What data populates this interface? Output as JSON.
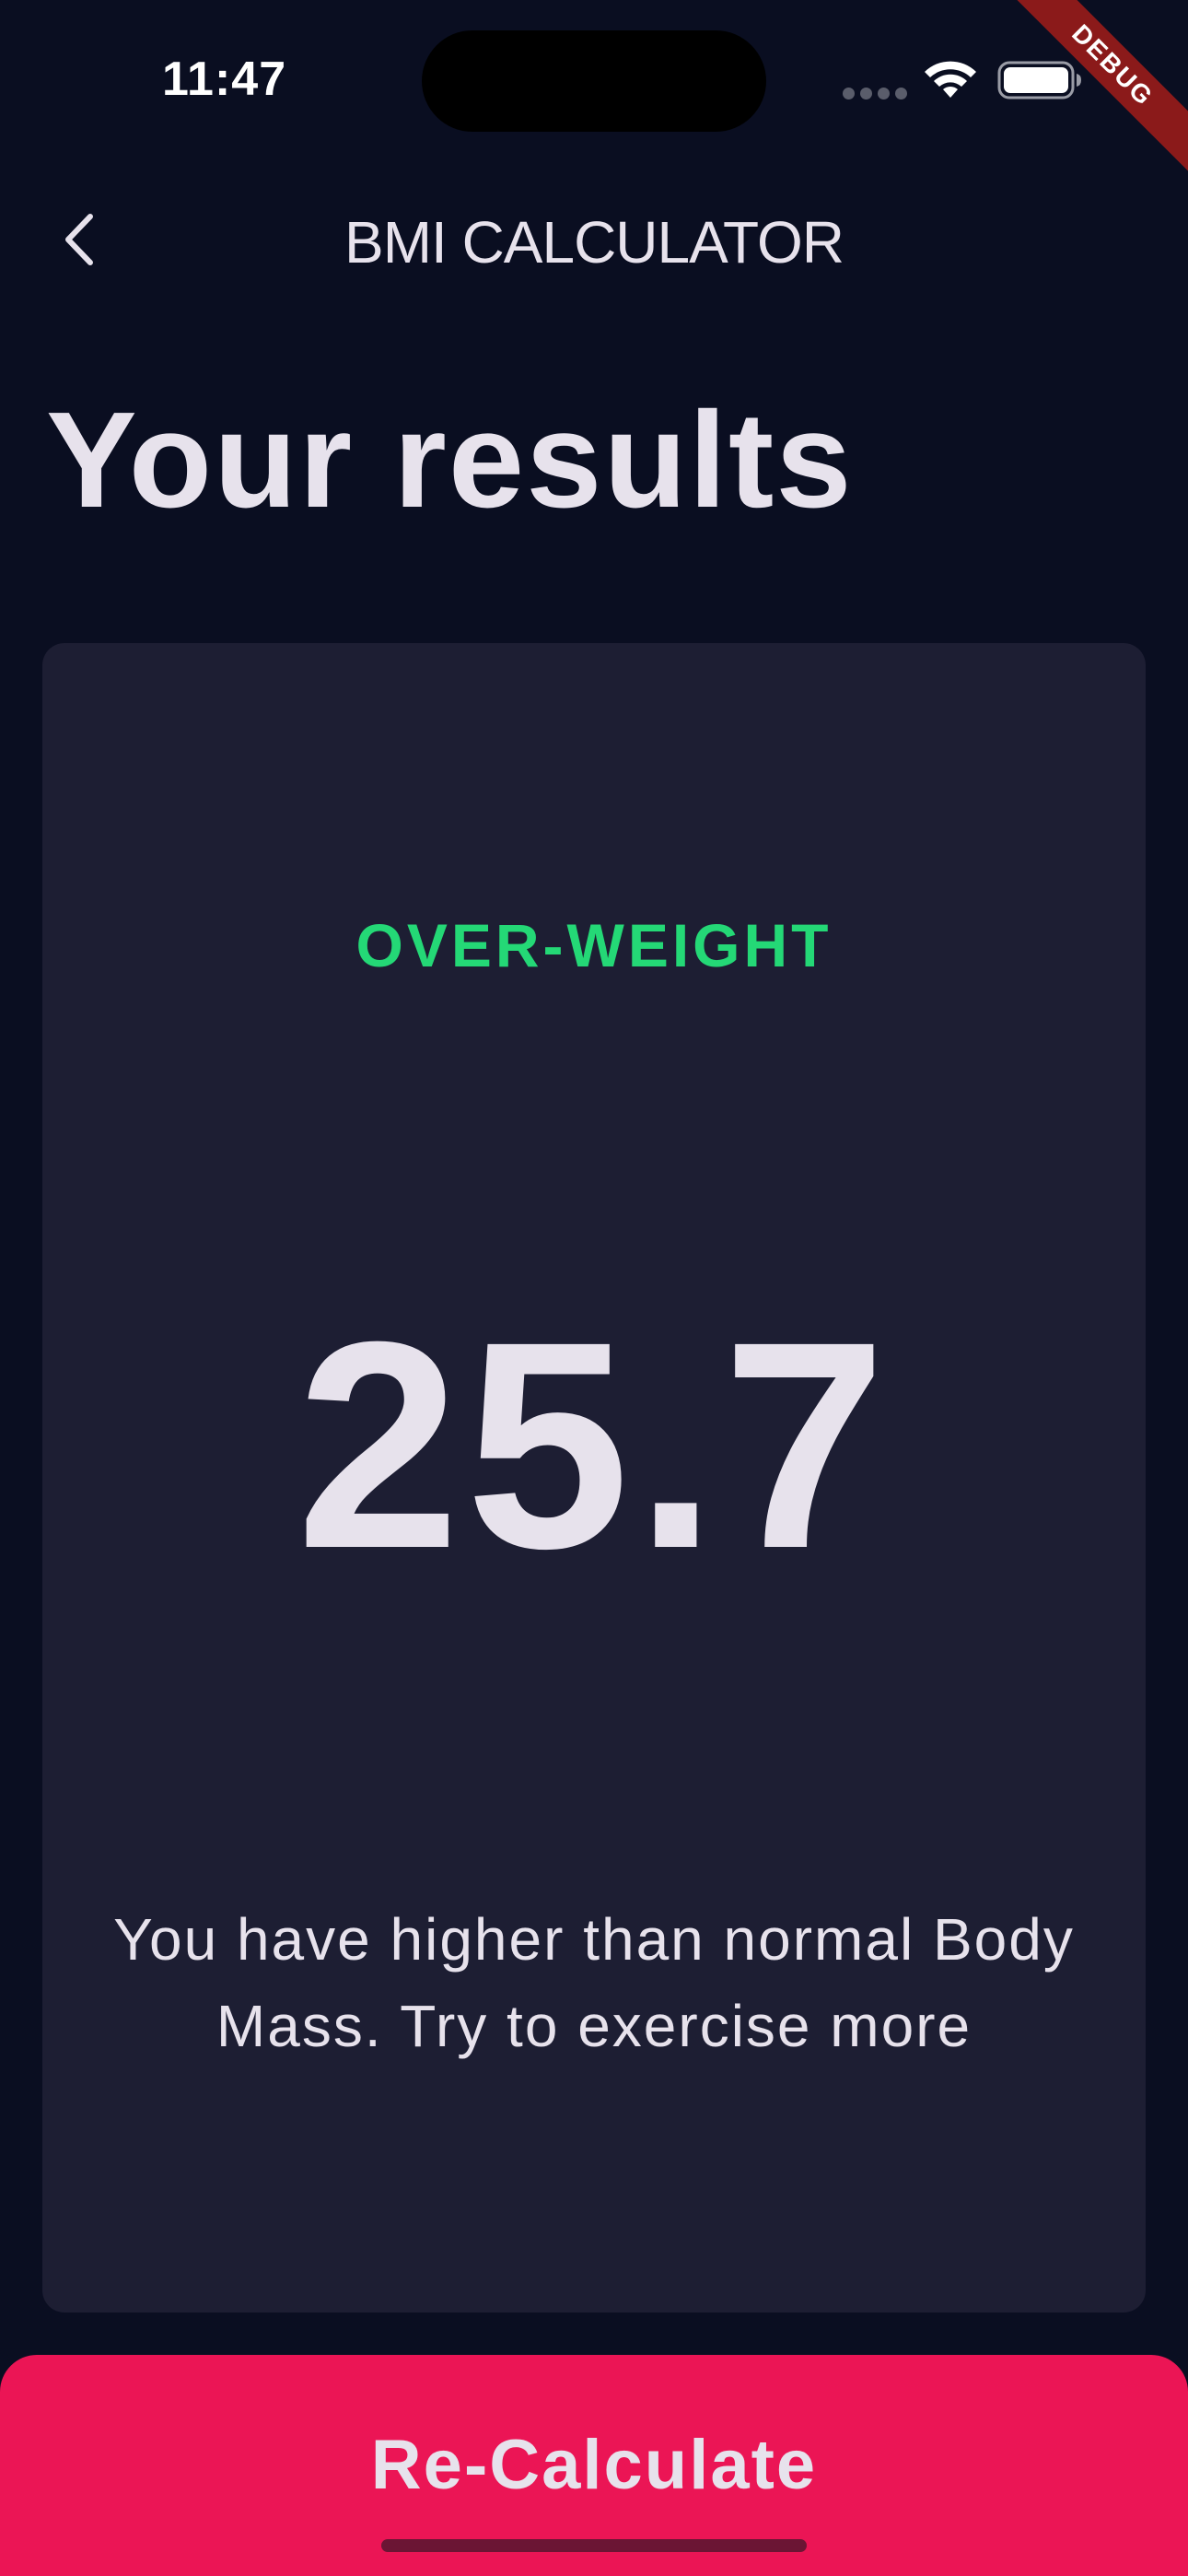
{
  "status_bar": {
    "time": "11:47",
    "debug_label": "DEBUG",
    "icons": [
      "cellular-icon",
      "wifi-icon",
      "battery-icon"
    ]
  },
  "app_bar": {
    "title": "BMI CALCULATOR",
    "back_icon": "chevron-left-icon"
  },
  "page": {
    "title": "Your results"
  },
  "result": {
    "status": "OVER-WEIGHT",
    "bmi": "25.7",
    "advice": "You have higher than normal Body Mass. Try to exercise more"
  },
  "actions": {
    "recalculate_label": "Re-Calculate"
  },
  "colors": {
    "background": "#0a0e21",
    "card": "#1d1e33",
    "status_green": "#24d876",
    "accent_pink": "#eb1555",
    "text": "#e7e2ec",
    "debug_ribbon": "#8b1a1a"
  }
}
